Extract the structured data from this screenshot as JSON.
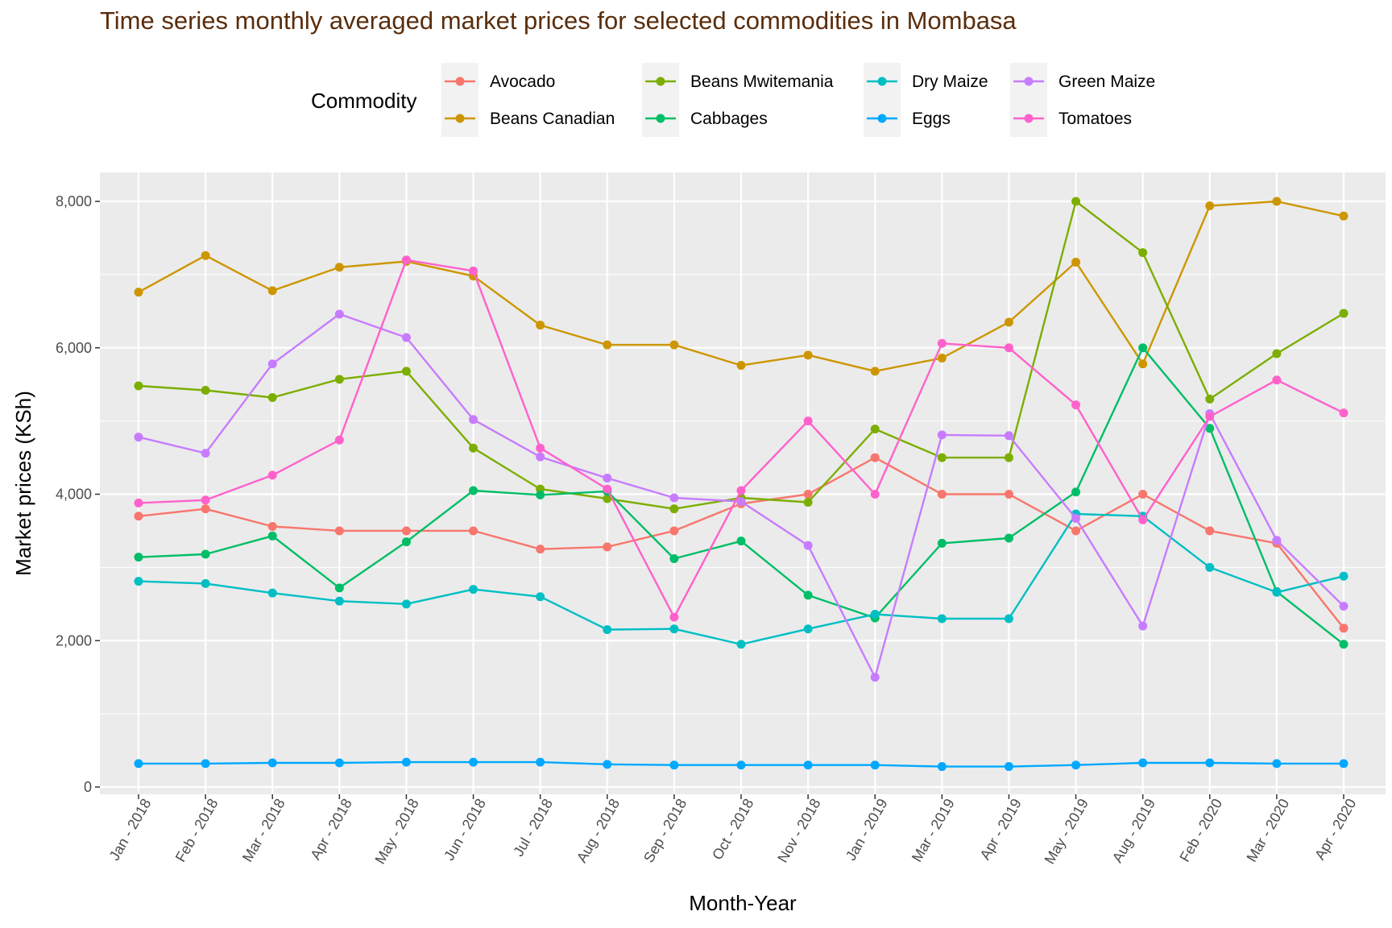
{
  "chart_data": {
    "type": "line",
    "title": "Time series monthly averaged market prices for selected commodities in Mombasa",
    "xlabel": "Month-Year",
    "ylabel": "Market prices (KSh)",
    "ylim": [
      0,
      8400
    ],
    "y_ticks": [
      0,
      2000,
      4000,
      6000,
      8000
    ],
    "y_tick_labels": [
      "0",
      "2,000",
      "4,000",
      "6,000",
      "8,000"
    ],
    "grid": true,
    "legend": {
      "title": "Commodity",
      "position": "top"
    },
    "categories": [
      "Jan - 2018",
      "Feb - 2018",
      "Mar - 2018",
      "Apr - 2018",
      "May - 2018",
      "Jun - 2018",
      "Jul - 2018",
      "Aug - 2018",
      "Sep - 2018",
      "Oct - 2018",
      "Nov - 2018",
      "Jan - 2019",
      "Mar - 2019",
      "Apr - 2019",
      "May - 2019",
      "Aug - 2019",
      "Feb - 2020",
      "Mar - 2020",
      "Apr - 2020"
    ],
    "series": [
      {
        "name": "Avocado",
        "color": "#F8766D",
        "values": [
          3700,
          3800,
          3560,
          3500,
          3500,
          3500,
          3250,
          3280,
          3500,
          3870,
          4000,
          4500,
          4000,
          4000,
          3500,
          4000,
          3500,
          3330,
          2170
        ]
      },
      {
        "name": "Beans Canadian",
        "color": "#CD9600",
        "values": [
          6760,
          7260,
          6780,
          7100,
          7180,
          6980,
          6310,
          6040,
          6040,
          5760,
          5900,
          5680,
          5860,
          6350,
          7170,
          5780,
          7940,
          8000,
          7800
        ]
      },
      {
        "name": "Beans Mwitemania",
        "color": "#7CAE00",
        "values": [
          5480,
          5420,
          5320,
          5570,
          5680,
          4630,
          4070,
          3940,
          3800,
          3950,
          3890,
          4890,
          4500,
          4500,
          8000,
          7300,
          5300,
          5920,
          6470
        ]
      },
      {
        "name": "Cabbages",
        "color": "#00BE67",
        "values": [
          3140,
          3180,
          3430,
          2720,
          3350,
          4050,
          3990,
          4040,
          3120,
          3360,
          2620,
          2310,
          3330,
          3400,
          4030,
          6000,
          4900,
          2670,
          1950
        ]
      },
      {
        "name": "Dry Maize",
        "color": "#00BFC4",
        "values": [
          2810,
          2780,
          2650,
          2540,
          2500,
          2700,
          2600,
          2150,
          2160,
          1950,
          2160,
          2360,
          2300,
          2300,
          3730,
          3700,
          3000,
          2660,
          2880
        ]
      },
      {
        "name": "Eggs",
        "color": "#00A9FF",
        "values": [
          320,
          320,
          330,
          330,
          340,
          340,
          340,
          310,
          300,
          300,
          300,
          300,
          280,
          280,
          300,
          330,
          330,
          320,
          320
        ]
      },
      {
        "name": "Green Maize",
        "color": "#C77CFF",
        "values": [
          4780,
          4560,
          5780,
          6460,
          6140,
          5020,
          4510,
          4220,
          3950,
          3900,
          3300,
          1500,
          4810,
          4800,
          3670,
          2200,
          5100,
          3370,
          2470
        ]
      },
      {
        "name": "Tomatoes",
        "color": "#FF61CC",
        "values": [
          3880,
          3920,
          4260,
          4740,
          7200,
          7050,
          4630,
          4070,
          2320,
          4050,
          5000,
          4000,
          6060,
          6000,
          5220,
          3650,
          5060,
          5560,
          5110
        ]
      }
    ]
  }
}
